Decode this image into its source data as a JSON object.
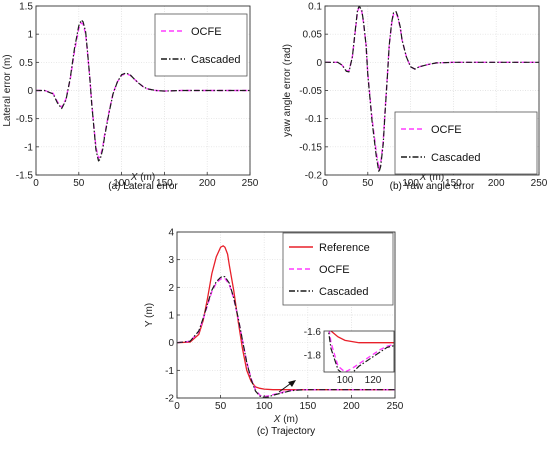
{
  "colors": {
    "reference": "#e8202a",
    "ocfe": "#ff3cff",
    "cascaded": "#1a1a1a",
    "grid": "#dcdcdc"
  },
  "chart_data": [
    {
      "type": "line",
      "caption": "(a) Lateral error",
      "xlabel_var": "X",
      "xlabel_unit": " (m)",
      "ylabel": "Lateral error (m)",
      "xlim": [
        0,
        250
      ],
      "ylim": [
        -1.5,
        1.5
      ],
      "xticks": [
        0,
        50,
        100,
        150,
        200,
        250
      ],
      "yticks": [
        -1.5,
        -1,
        -0.5,
        0,
        0.5,
        1,
        1.5
      ],
      "grid": true,
      "legend": "top-right",
      "series": [
        {
          "name": "OCFE",
          "style": "dashed",
          "x": [
            0,
            10,
            20,
            25,
            30,
            35,
            40,
            45,
            50,
            53,
            55,
            58,
            60,
            63,
            65,
            68,
            70,
            73,
            75,
            78,
            80,
            85,
            90,
            95,
            100,
            105,
            110,
            115,
            120,
            125,
            130,
            140,
            150,
            170,
            200,
            250
          ],
          "y": [
            0,
            0,
            -0.05,
            -0.2,
            -0.3,
            -0.15,
            0.2,
            0.7,
            1.1,
            1.2,
            1.18,
            1.0,
            0.7,
            0.2,
            -0.2,
            -0.7,
            -1.0,
            -1.2,
            -1.18,
            -1.0,
            -0.8,
            -0.4,
            -0.05,
            0.15,
            0.27,
            0.3,
            0.27,
            0.2,
            0.13,
            0.07,
            0.03,
            0,
            -0.01,
            0,
            0,
            0
          ]
        },
        {
          "name": "Cascaded",
          "style": "dashdot",
          "x": [
            0,
            10,
            20,
            25,
            30,
            35,
            40,
            45,
            50,
            53,
            55,
            58,
            60,
            63,
            65,
            68,
            70,
            73,
            75,
            78,
            80,
            85,
            90,
            95,
            100,
            105,
            110,
            115,
            120,
            125,
            130,
            140,
            150,
            170,
            200,
            250
          ],
          "y": [
            0,
            0,
            -0.06,
            -0.22,
            -0.32,
            -0.17,
            0.22,
            0.75,
            1.15,
            1.25,
            1.22,
            1.04,
            0.72,
            0.2,
            -0.22,
            -0.72,
            -1.05,
            -1.25,
            -1.22,
            -1.04,
            -0.83,
            -0.42,
            -0.06,
            0.15,
            0.28,
            0.31,
            0.28,
            0.2,
            0.13,
            0.07,
            0.03,
            0,
            -0.01,
            0,
            0,
            0
          ]
        }
      ]
    },
    {
      "type": "line",
      "caption": "(b) Yaw angle error",
      "xlabel_var": "X",
      "xlabel_unit": " (m)",
      "ylabel": "yaw angle error (rad)",
      "xlim": [
        0,
        250
      ],
      "ylim": [
        -0.2,
        0.1
      ],
      "xticks": [
        0,
        50,
        100,
        150,
        200,
        250
      ],
      "yticks": [
        -0.2,
        -0.15,
        -0.1,
        -0.05,
        0,
        0.05,
        0.1
      ],
      "grid": true,
      "legend": "bottom-right",
      "series": [
        {
          "name": "OCFE",
          "style": "dashed",
          "x": [
            0,
            15,
            20,
            25,
            28,
            32,
            35,
            38,
            40,
            43,
            45,
            48,
            50,
            55,
            60,
            63,
            65,
            68,
            70,
            73,
            75,
            78,
            80,
            83,
            85,
            88,
            90,
            95,
            100,
            105,
            110,
            120,
            130,
            150,
            200,
            250
          ],
          "y": [
            0,
            0,
            -0.005,
            -0.015,
            -0.015,
            0.01,
            0.05,
            0.09,
            0.098,
            0.09,
            0.07,
            0.03,
            -0.02,
            -0.1,
            -0.16,
            -0.19,
            -0.18,
            -0.14,
            -0.09,
            -0.02,
            0.03,
            0.07,
            0.085,
            0.088,
            0.08,
            0.06,
            0.04,
            0.01,
            -0.008,
            -0.012,
            -0.008,
            -0.004,
            -0.001,
            0,
            0,
            0
          ]
        },
        {
          "name": "Cascaded",
          "style": "dashdot",
          "x": [
            0,
            15,
            20,
            25,
            28,
            32,
            35,
            38,
            40,
            43,
            45,
            48,
            50,
            55,
            60,
            63,
            65,
            68,
            70,
            73,
            75,
            78,
            80,
            83,
            85,
            88,
            90,
            95,
            100,
            105,
            110,
            120,
            130,
            150,
            200,
            250
          ],
          "y": [
            0,
            0,
            -0.005,
            -0.016,
            -0.017,
            0.01,
            0.052,
            0.093,
            0.1,
            0.092,
            0.072,
            0.03,
            -0.022,
            -0.105,
            -0.168,
            -0.195,
            -0.185,
            -0.145,
            -0.093,
            -0.022,
            0.03,
            0.072,
            0.088,
            0.09,
            0.082,
            0.062,
            0.04,
            0.01,
            -0.008,
            -0.012,
            -0.008,
            -0.004,
            -0.001,
            0,
            0,
            0
          ]
        }
      ]
    },
    {
      "type": "line",
      "caption": "(c) Trajectory",
      "xlabel_var": "X",
      "xlabel_unit": " (m)",
      "ylabel": "Y (m)",
      "xlim": [
        0,
        250
      ],
      "ylim": [
        -2,
        4
      ],
      "xticks": [
        0,
        50,
        100,
        150,
        200,
        250
      ],
      "yticks": [
        -2,
        -1,
        0,
        1,
        2,
        3,
        4
      ],
      "grid": true,
      "legend": "top-right",
      "series": [
        {
          "name": "Reference",
          "style": "solid",
          "x": [
            0,
            15,
            25,
            30,
            35,
            40,
            45,
            50,
            53,
            55,
            58,
            60,
            65,
            70,
            75,
            80,
            85,
            90,
            95,
            100,
            110,
            130,
            150,
            200,
            250
          ],
          "y": [
            0,
            0.02,
            0.3,
            0.8,
            1.6,
            2.5,
            3.1,
            3.45,
            3.5,
            3.45,
            3.2,
            2.8,
            1.9,
            0.8,
            -0.2,
            -1.0,
            -1.4,
            -1.6,
            -1.65,
            -1.68,
            -1.7,
            -1.7,
            -1.7,
            -1.7,
            -1.7
          ]
        },
        {
          "name": "OCFE",
          "style": "dashed",
          "x": [
            0,
            15,
            25,
            30,
            35,
            40,
            45,
            50,
            53,
            55,
            60,
            65,
            70,
            75,
            80,
            85,
            90,
            95,
            100,
            105,
            110,
            115,
            120,
            125,
            130,
            140,
            150,
            200,
            250
          ],
          "y": [
            0,
            0.05,
            0.4,
            0.85,
            1.35,
            1.85,
            2.15,
            2.3,
            2.33,
            2.32,
            2.1,
            1.6,
            0.9,
            0.1,
            -0.7,
            -1.3,
            -1.7,
            -1.9,
            -1.95,
            -1.92,
            -1.88,
            -1.84,
            -1.8,
            -1.76,
            -1.73,
            -1.7,
            -1.7,
            -1.7,
            -1.7
          ]
        },
        {
          "name": "Cascaded",
          "style": "dashdot",
          "x": [
            0,
            15,
            25,
            30,
            35,
            40,
            45,
            50,
            53,
            55,
            60,
            65,
            70,
            75,
            80,
            85,
            90,
            95,
            100,
            105,
            110,
            115,
            120,
            125,
            130,
            140,
            150,
            200,
            250
          ],
          "y": [
            0,
            0.05,
            0.42,
            0.88,
            1.4,
            1.9,
            2.2,
            2.36,
            2.4,
            2.38,
            2.15,
            1.63,
            0.92,
            0.1,
            -0.72,
            -1.33,
            -1.75,
            -1.93,
            -1.98,
            -1.96,
            -1.9,
            -1.86,
            -1.82,
            -1.78,
            -1.74,
            -1.71,
            -1.7,
            -1.7,
            -1.7
          ]
        }
      ],
      "inset": {
        "xlim": [
          85,
          135
        ],
        "ylim": [
          -1.95,
          -1.6
        ],
        "xticks": [
          100,
          120
        ],
        "yticks": [
          -1.6,
          -1.8
        ]
      }
    }
  ]
}
